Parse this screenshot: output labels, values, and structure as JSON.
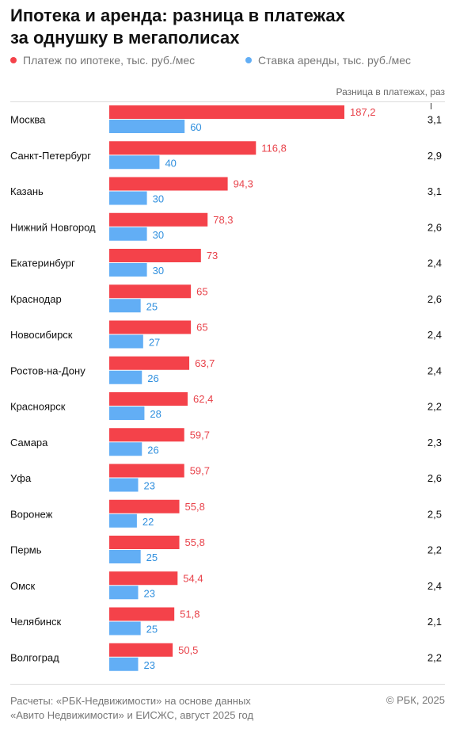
{
  "header": {
    "title_line1": "Ипотека и аренда: разница в платежах",
    "title_line2": "за однушку в мегаполисах"
  },
  "legend": {
    "mortgage": "Платеж по ипотеке, тыс. руб./мес",
    "rent": "Ставка аренды, тыс. руб./мес"
  },
  "diff_header": "Разница в платежах, раз",
  "colors": {
    "mortgage": "#f4424a",
    "rent": "#62aef5",
    "mortgage_text": "#e8424a",
    "rent_text": "#2f8fde"
  },
  "footer": {
    "source_line1": "Расчеты: «РБК-Недвижимости» на основе данных",
    "source_line2": "«Авито Недвижимости» и ЕИСЖС, август 2025 год",
    "copyright": "© РБК, 2025"
  },
  "chart_data": {
    "type": "bar",
    "orientation": "horizontal",
    "title": "Ипотека и аренда: разница в платежах за однушку в мегаполисах",
    "categories": [
      "Москва",
      "Санкт-Петербург",
      "Казань",
      "Нижний Новгород",
      "Екатеринбург",
      "Краснодар",
      "Новосибирск",
      "Ростов-на-Дону",
      "Красноярск",
      "Самара",
      "Уфа",
      "Воронеж",
      "Пермь",
      "Омск",
      "Челябинск",
      "Волгоград"
    ],
    "series": [
      {
        "name": "Платеж по ипотеке, тыс. руб./мес",
        "values": [
          187.2,
          116.8,
          94.3,
          78.3,
          73,
          65,
          65,
          63.7,
          62.4,
          59.7,
          59.7,
          55.8,
          55.8,
          54.4,
          51.8,
          50.5
        ],
        "labels": [
          "187,2",
          "116,8",
          "94,3",
          "78,3",
          "73",
          "65",
          "65",
          "63,7",
          "62,4",
          "59,7",
          "59,7",
          "55,8",
          "55,8",
          "54,4",
          "51,8",
          "50,5"
        ]
      },
      {
        "name": "Ставка аренды, тыс. руб./мес",
        "values": [
          60,
          40,
          30,
          30,
          30,
          25,
          27,
          26,
          28,
          26,
          23,
          22,
          25,
          23,
          25,
          23
        ],
        "labels": [
          "60",
          "40",
          "30",
          "30",
          "30",
          "25",
          "27",
          "26",
          "28",
          "26",
          "23",
          "22",
          "25",
          "23",
          "25",
          "23"
        ]
      }
    ],
    "ratio": {
      "name": "Разница в платежах, раз",
      "values": [
        3.1,
        2.9,
        3.1,
        2.6,
        2.4,
        2.6,
        2.4,
        2.4,
        2.2,
        2.3,
        2.6,
        2.5,
        2.2,
        2.4,
        2.1,
        2.2
      ],
      "labels": [
        "3,1",
        "2,9",
        "3,1",
        "2,6",
        "2,4",
        "2,6",
        "2,4",
        "2,4",
        "2,2",
        "2,3",
        "2,6",
        "2,5",
        "2,2",
        "2,4",
        "2,1",
        "2,2"
      ]
    },
    "xlim": [
      0,
      187.2
    ],
    "legend_position": "top",
    "grid": false
  }
}
